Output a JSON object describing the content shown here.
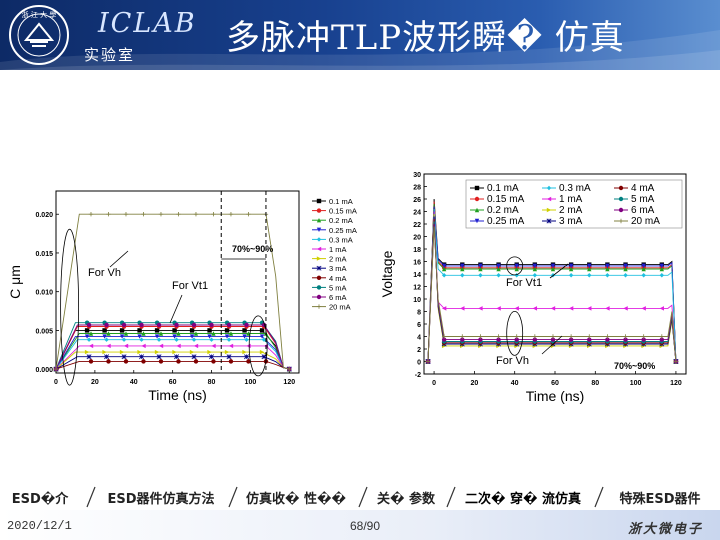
{
  "header": {
    "logo_text": "ZHEJIANG UNIVERSITY",
    "lab_name": "ICLAB",
    "lab_subtitle": "实验室",
    "title": "多脉冲TLP波形瞬� 仿真"
  },
  "nav": {
    "tabs": [
      {
        "label": "ESD�介",
        "active": false
      },
      {
        "label": "ESD器件仿真方法",
        "active": false
      },
      {
        "label": "仿真收� 性��",
        "active": false
      },
      {
        "label": "关� 参数",
        "active": false
      },
      {
        "label": "二次� 穿� 流仿真",
        "active": true
      },
      {
        "label": "特殊ESD器件",
        "active": false
      }
    ]
  },
  "footer": {
    "date": "2020/12/1",
    "page": "68/90",
    "brand": "浙大微电子"
  },
  "chart_data": [
    {
      "type": "line",
      "title": "",
      "xlabel": "Time (ns)",
      "ylabel": "C μm",
      "xlim": [
        0,
        125
      ],
      "ylim": [
        -0.0005,
        0.023
      ],
      "xticks": [
        0,
        20,
        40,
        60,
        80,
        100,
        120
      ],
      "yticks": [
        0.0,
        0.005,
        0.01,
        0.015,
        0.02
      ],
      "ytick_labels": [
        "0.000",
        "0.005",
        "0.010",
        "0.015",
        "0.020"
      ],
      "legend_position": "right",
      "series_colors": [
        "#000000",
        "#e02020",
        "#20a020",
        "#2020d0",
        "#20c0e0",
        "#e020e0",
        "#d0d000",
        "#000080",
        "#800000",
        "#008080",
        "#800080",
        "#808040"
      ],
      "series": [
        {
          "name": "0.1 mA",
          "plateau": 0.005
        },
        {
          "name": "0.15 mA",
          "plateau": 0.0055
        },
        {
          "name": "0.2 mA",
          "plateau": 0.0046
        },
        {
          "name": "0.25 mA",
          "plateau": 0.0042
        },
        {
          "name": "0.3 mA",
          "plateau": 0.0038
        },
        {
          "name": "1 mA",
          "plateau": 0.003
        },
        {
          "name": "2 mA",
          "plateau": 0.0022
        },
        {
          "name": "3 mA",
          "plateau": 0.0016
        },
        {
          "name": "4 mA",
          "plateau": 0.001
        },
        {
          "name": "5 mA",
          "plateau": 0.006
        },
        {
          "name": "6 mA",
          "plateau": 0.0057
        },
        {
          "name": "20 mA",
          "plateau": 0.02
        }
      ],
      "vlines": [
        85,
        108
      ],
      "annotations": [
        "70%~90%",
        "For Vh",
        "For Vt1"
      ]
    },
    {
      "type": "line",
      "title": "",
      "xlabel": "Time (ns)",
      "ylabel": "Voltage",
      "xlim": [
        -5,
        125
      ],
      "ylim": [
        -2,
        30
      ],
      "xticks": [
        0,
        20,
        40,
        60,
        80,
        100,
        120
      ],
      "yticks": [
        -2,
        0,
        2,
        4,
        6,
        8,
        10,
        12,
        14,
        16,
        18,
        20,
        22,
        24,
        26,
        28,
        30
      ],
      "legend_position": "top",
      "series_colors": [
        "#000000",
        "#e02020",
        "#20a020",
        "#2020d0",
        "#20c0e0",
        "#e020e0",
        "#d0d000",
        "#000080",
        "#800000",
        "#008080",
        "#800080",
        "#808040"
      ],
      "series": [
        {
          "name": "0.1 mA",
          "plateau": 15.5
        },
        {
          "name": "0.15 mA",
          "plateau": 15.0
        },
        {
          "name": "0.2 mA",
          "plateau": 14.8
        },
        {
          "name": "0.25 mA",
          "plateau": 15.3
        },
        {
          "name": "0.3 mA",
          "plateau": 13.8
        },
        {
          "name": "1 mA",
          "plateau": 8.5
        },
        {
          "name": "2 mA",
          "plateau": 2.5
        },
        {
          "name": "3 mA",
          "plateau": 2.8
        },
        {
          "name": "4 mA",
          "plateau": 3.0
        },
        {
          "name": "5 mA",
          "plateau": 3.2
        },
        {
          "name": "6 mA",
          "plateau": 3.5
        },
        {
          "name": "20 mA",
          "plateau": 4.0
        }
      ],
      "vlines": [],
      "annotations": [
        "For Vt1",
        "For Vh",
        "70%~90%"
      ]
    }
  ]
}
